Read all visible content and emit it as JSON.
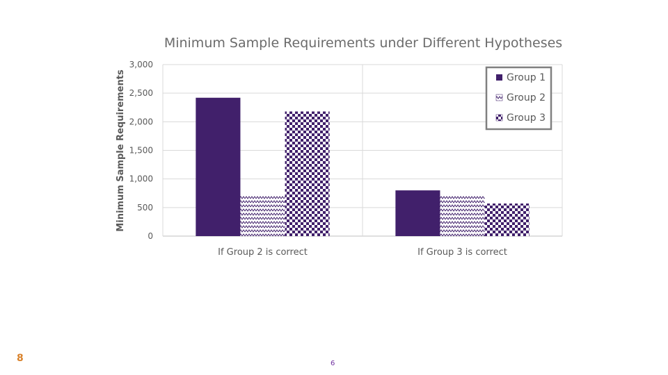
{
  "chart_data": {
    "type": "bar",
    "title": "Minimum Sample Requirements under Different Hypotheses",
    "xlabel": "",
    "ylabel": "Minimum Sample Requirements",
    "categories": [
      "If Group 2 is correct",
      "If Group 3 is correct"
    ],
    "series": [
      {
        "name": "Group 1",
        "values": [
          2420,
          800
        ],
        "color": "#41206b",
        "fill": "solid"
      },
      {
        "name": "Group 2",
        "values": [
          720,
          720
        ],
        "color": "#41206b",
        "fill": "zigzag"
      },
      {
        "name": "Group 3",
        "values": [
          2180,
          570
        ],
        "color": "#41206b",
        "fill": "checkerboard"
      }
    ],
    "ylim": [
      0,
      3000
    ],
    "yticks": [
      0,
      500,
      1000,
      1500,
      2000,
      2500,
      3000
    ],
    "ytick_labels": [
      "0",
      "500",
      "1,000",
      "1,500",
      "2,000",
      "2,500",
      "3,000"
    ],
    "grid": true,
    "legend_position": "top-right"
  },
  "slide": {
    "section_number": "8",
    "page_number": "6"
  }
}
